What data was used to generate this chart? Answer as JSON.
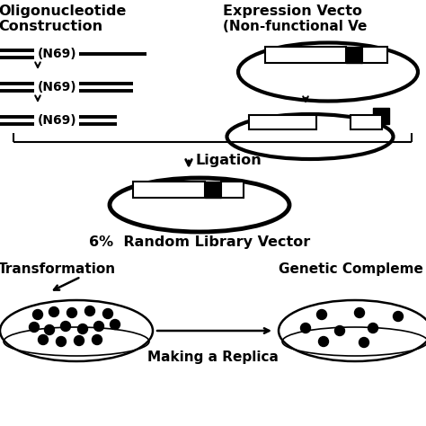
{
  "bg_color": "#ffffff",
  "left_title1": "Oligonucleotide",
  "left_title2": "Construction",
  "right_title1": "Expression Vecto",
  "right_title2": "(Non-functional Ve",
  "n69_label": "(N69)",
  "ligation_label": "↓ Ligation",
  "library_label": "6%  Random Library Vector",
  "transformation_label": "Transformation",
  "replica_label": "Making a Replica",
  "complement_label": "Genetic Compleme",
  "lw_plasmid": 3.0,
  "lw_dna": 2.8,
  "lw_bracket": 1.5
}
